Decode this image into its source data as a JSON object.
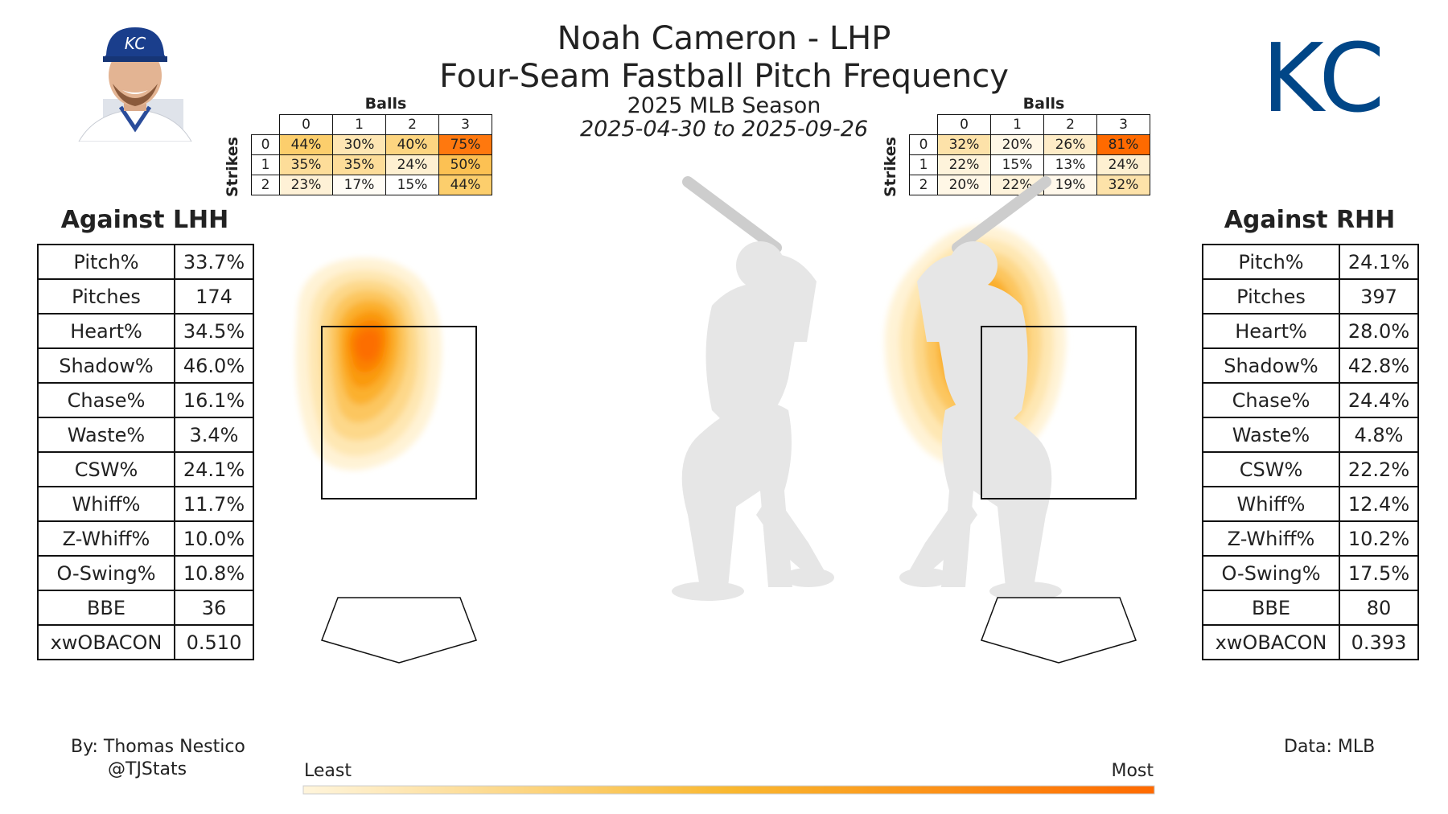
{
  "header": {
    "title_line1": "Noah Cameron - LHP",
    "title_line2": "Four-Seam Fastball Pitch Frequency",
    "season": "2025 MLB Season",
    "date_range": "2025-04-30 to 2025-09-26"
  },
  "logo": {
    "icon": "kc-royals-logo",
    "text": "KC",
    "color": "#004687"
  },
  "headshot": {
    "icon": "player-headshot",
    "cap_text": "KC",
    "cap_color": "#1a3e8c"
  },
  "count_tables": {
    "balls_label": "Balls",
    "strikes_label": "Strikes",
    "balls": [
      "0",
      "1",
      "2",
      "3"
    ],
    "strikes": [
      "0",
      "1",
      "2"
    ],
    "lhh": [
      [
        "44%",
        "30%",
        "40%",
        "75%"
      ],
      [
        "35%",
        "35%",
        "24%",
        "50%"
      ],
      [
        "23%",
        "17%",
        "15%",
        "44%"
      ]
    ],
    "rhh": [
      [
        "32%",
        "20%",
        "26%",
        "81%"
      ],
      [
        "22%",
        "15%",
        "13%",
        "24%"
      ],
      [
        "20%",
        "22%",
        "19%",
        "32%"
      ]
    ]
  },
  "panels": {
    "lhh": {
      "header": "Against LHH",
      "rows": [
        {
          "label": "Pitch%",
          "value": "33.7%"
        },
        {
          "label": "Pitches",
          "value": "174"
        },
        {
          "label": "Heart%",
          "value": "34.5%"
        },
        {
          "label": "Shadow%",
          "value": "46.0%"
        },
        {
          "label": "Chase%",
          "value": "16.1%"
        },
        {
          "label": "Waste%",
          "value": "3.4%"
        },
        {
          "label": "CSW%",
          "value": "24.1%"
        },
        {
          "label": "Whiff%",
          "value": "11.7%"
        },
        {
          "label": "Z-Whiff%",
          "value": "10.0%"
        },
        {
          "label": "O-Swing%",
          "value": "10.8%"
        },
        {
          "label": "BBE",
          "value": "36"
        },
        {
          "label": "xwOBACON",
          "value": "0.510"
        }
      ]
    },
    "rhh": {
      "header": "Against RHH",
      "rows": [
        {
          "label": "Pitch%",
          "value": "24.1%"
        },
        {
          "label": "Pitches",
          "value": "397"
        },
        {
          "label": "Heart%",
          "value": "28.0%"
        },
        {
          "label": "Shadow%",
          "value": "42.8%"
        },
        {
          "label": "Chase%",
          "value": "24.4%"
        },
        {
          "label": "Waste%",
          "value": "4.8%"
        },
        {
          "label": "CSW%",
          "value": "22.2%"
        },
        {
          "label": "Whiff%",
          "value": "12.4%"
        },
        {
          "label": "Z-Whiff%",
          "value": "10.2%"
        },
        {
          "label": "O-Swing%",
          "value": "17.5%"
        },
        {
          "label": "BBE",
          "value": "80"
        },
        {
          "label": "xwOBACON",
          "value": "0.393"
        }
      ]
    }
  },
  "footer": {
    "byline": "By: Thomas Nestico",
    "handle": "@TJStats",
    "source": "Data: MLB",
    "colorbar_least": "Least",
    "colorbar_most": "Most"
  },
  "chart_data": [
    {
      "type": "heatmap",
      "title": "Against LHH",
      "description": "Pitch location density (kernel density), peak concentration up and to the left inside the zone",
      "hotspot": {
        "horizontal": "left-center of zone",
        "vertical": "upper-middle of zone"
      }
    },
    {
      "type": "heatmap",
      "title": "Against RHH",
      "description": "Pitch location density (kernel density), peak concentration centered, slightly above middle",
      "hotspot": {
        "horizontal": "center of zone",
        "vertical": "upper-middle of zone"
      }
    },
    {
      "type": "table",
      "title": "Count Frequency vs LHH",
      "columns": [
        "0",
        "1",
        "2",
        "3"
      ],
      "rows": [
        "0",
        "1",
        "2"
      ],
      "values": [
        [
          44,
          30,
          40,
          75
        ],
        [
          35,
          35,
          24,
          50
        ],
        [
          23,
          17,
          15,
          44
        ]
      ]
    },
    {
      "type": "table",
      "title": "Count Frequency vs RHH",
      "columns": [
        "0",
        "1",
        "2",
        "3"
      ],
      "rows": [
        "0",
        "1",
        "2"
      ],
      "values": [
        [
          32,
          20,
          26,
          81
        ],
        [
          22,
          15,
          13,
          24
        ],
        [
          20,
          22,
          19,
          32
        ]
      ]
    }
  ],
  "colors": {
    "scale_low": "#fff5dc",
    "scale_mid": "#f9a800",
    "scale_high": "#ff6a00",
    "silhouette": "#e6e6e6"
  }
}
